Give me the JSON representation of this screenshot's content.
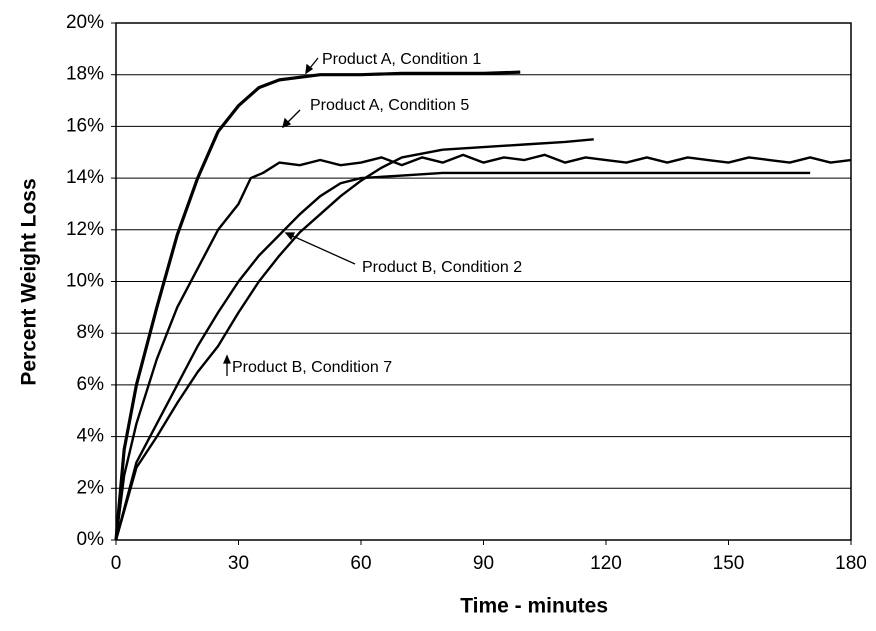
{
  "chart_data": {
    "type": "line",
    "xlabel": "Time - minutes",
    "ylabel": "Percent Weight Loss",
    "xlim": [
      0,
      180
    ],
    "xticks": [
      0,
      30,
      60,
      90,
      120,
      150,
      180
    ],
    "ylim": [
      0,
      20
    ],
    "yticks": [
      {
        "value": 0,
        "label": "0%"
      },
      {
        "value": 2,
        "label": "2%"
      },
      {
        "value": 4,
        "label": "4%"
      },
      {
        "value": 6,
        "label": "6%"
      },
      {
        "value": 8,
        "label": "8%"
      },
      {
        "value": 10,
        "label": "10%"
      },
      {
        "value": 12,
        "label": "12%"
      },
      {
        "value": 14,
        "label": "14%"
      },
      {
        "value": 16,
        "label": "16%"
      },
      {
        "value": 18,
        "label": "18%"
      },
      {
        "value": 20,
        "label": "20%"
      }
    ],
    "grid": true,
    "series": [
      {
        "name": "Product A, Condition 1",
        "color": "#000000",
        "x": [
          0,
          2,
          5,
          10,
          15,
          20,
          25,
          30,
          35,
          40,
          45,
          50,
          60,
          70,
          80,
          90,
          99
        ],
        "values": [
          0,
          3.5,
          6,
          9,
          11.8,
          14,
          15.8,
          16.8,
          17.5,
          17.8,
          17.9,
          18,
          18,
          18.05,
          18.05,
          18.05,
          18.1
        ]
      },
      {
        "name": "Product A, Condition 5",
        "color": "#000000",
        "x": [
          0,
          2,
          5,
          10,
          15,
          20,
          25,
          30,
          33,
          36,
          40,
          45,
          50,
          55,
          60,
          65,
          70,
          75,
          80,
          85,
          90,
          95,
          100,
          105,
          110,
          115,
          120,
          125,
          130,
          135,
          140,
          145,
          150,
          155,
          160,
          165,
          170,
          175,
          180
        ],
        "values": [
          0,
          2.5,
          4.5,
          7,
          9,
          10.5,
          12,
          13,
          14,
          14.2,
          14.6,
          14.5,
          14.7,
          14.5,
          14.6,
          14.8,
          14.5,
          14.8,
          14.6,
          14.9,
          14.6,
          14.8,
          14.7,
          14.9,
          14.6,
          14.8,
          14.7,
          14.6,
          14.8,
          14.6,
          14.8,
          14.7,
          14.6,
          14.8,
          14.7,
          14.6,
          14.8,
          14.6,
          14.7
        ]
      },
      {
        "name": "Product B, Condition 2",
        "color": "#000000",
        "x": [
          0,
          5,
          10,
          15,
          20,
          25,
          30,
          35,
          40,
          45,
          50,
          55,
          60,
          70,
          80,
          100,
          120,
          140,
          170
        ],
        "values": [
          0,
          3,
          4.5,
          6,
          7.5,
          8.8,
          10,
          11,
          11.8,
          12.6,
          13.3,
          13.8,
          14,
          14.1,
          14.2,
          14.2,
          14.2,
          14.2,
          14.2
        ]
      },
      {
        "name": "Product B, Condition 7",
        "color": "#000000",
        "x": [
          0,
          5,
          10,
          15,
          20,
          25,
          30,
          35,
          40,
          45,
          50,
          55,
          60,
          65,
          70,
          80,
          90,
          100,
          110,
          117
        ],
        "values": [
          0,
          2.8,
          4,
          5.3,
          6.5,
          7.5,
          8.8,
          10,
          11,
          11.9,
          12.6,
          13.3,
          13.9,
          14.4,
          14.8,
          15.1,
          15.2,
          15.3,
          15.4,
          15.5
        ]
      }
    ]
  }
}
